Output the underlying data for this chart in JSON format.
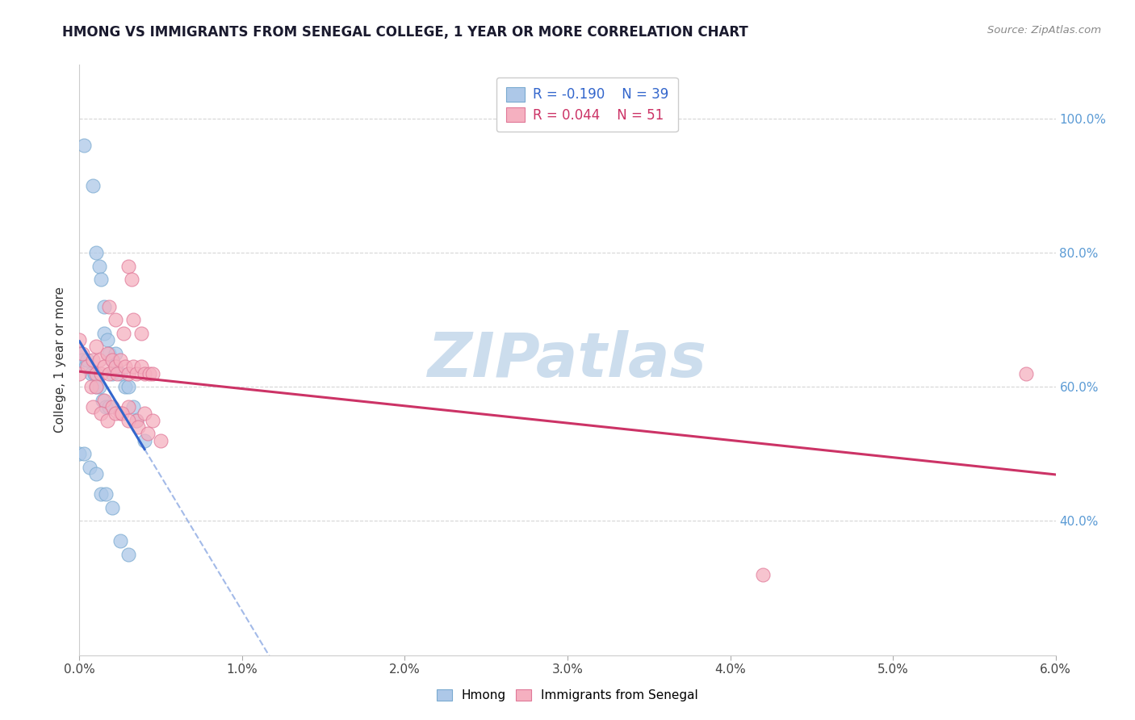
{
  "title": "HMONG VS IMMIGRANTS FROM SENEGAL COLLEGE, 1 YEAR OR MORE CORRELATION CHART",
  "source_text": "Source: ZipAtlas.com",
  "ylabel": "College, 1 year or more",
  "xlim": [
    0.0,
    0.06
  ],
  "ylim": [
    0.2,
    1.08
  ],
  "x_tick_labels": [
    "0.0%",
    "1.0%",
    "2.0%",
    "3.0%",
    "4.0%",
    "5.0%",
    "6.0%"
  ],
  "y_tick_labels": [
    "40.0%",
    "60.0%",
    "80.0%",
    "100.0%"
  ],
  "x_ticks": [
    0.0,
    0.01,
    0.02,
    0.03,
    0.04,
    0.05,
    0.06
  ],
  "y_ticks": [
    0.4,
    0.6,
    0.8,
    1.0
  ],
  "hmong_color": "#adc8e8",
  "senegal_color": "#f5b0c0",
  "hmong_edge": "#7aaad0",
  "senegal_edge": "#e07898",
  "trendline1_color": "#3366cc",
  "trendline2_color": "#cc3366",
  "watermark": "ZIPatlas",
  "watermark_color": "#ccdded",
  "background_color": "#ffffff",
  "hmong_x": [
    0.0003,
    0.0008,
    0.001,
    0.0012,
    0.0013,
    0.0015,
    0.0015,
    0.0017,
    0.0018,
    0.002,
    0.002,
    0.0022,
    0.0022,
    0.0025,
    0.0028,
    0.003,
    0.0033,
    0.0035,
    0.004,
    0.0,
    0.0002,
    0.0004,
    0.0005,
    0.0007,
    0.0009,
    0.001,
    0.0012,
    0.0014,
    0.0016,
    0.0018,
    0.0,
    0.0003,
    0.0006,
    0.001,
    0.0013,
    0.0016,
    0.002,
    0.0025,
    0.003
  ],
  "hmong_y": [
    0.96,
    0.9,
    0.8,
    0.78,
    0.76,
    0.72,
    0.68,
    0.67,
    0.65,
    0.64,
    0.62,
    0.65,
    0.63,
    0.62,
    0.6,
    0.6,
    0.57,
    0.55,
    0.52,
    0.65,
    0.64,
    0.63,
    0.64,
    0.62,
    0.62,
    0.6,
    0.6,
    0.58,
    0.57,
    0.57,
    0.5,
    0.5,
    0.48,
    0.47,
    0.44,
    0.44,
    0.42,
    0.37,
    0.35
  ],
  "senegal_x": [
    0.0,
    0.0,
    0.0002,
    0.0005,
    0.0007,
    0.0008,
    0.001,
    0.001,
    0.0012,
    0.0013,
    0.0015,
    0.0017,
    0.0018,
    0.002,
    0.0022,
    0.0023,
    0.0025,
    0.0028,
    0.003,
    0.0033,
    0.0035,
    0.0038,
    0.004,
    0.0043,
    0.0045,
    0.001,
    0.0015,
    0.002,
    0.0025,
    0.003,
    0.0035,
    0.004,
    0.0045,
    0.003,
    0.0032,
    0.0018,
    0.0022,
    0.0027,
    0.0033,
    0.0038,
    0.0008,
    0.0013,
    0.0017,
    0.0022,
    0.0026,
    0.003,
    0.0036,
    0.0042,
    0.005,
    0.0582,
    0.042
  ],
  "senegal_y": [
    0.67,
    0.62,
    0.65,
    0.63,
    0.6,
    0.64,
    0.66,
    0.62,
    0.64,
    0.62,
    0.63,
    0.65,
    0.62,
    0.64,
    0.63,
    0.62,
    0.64,
    0.63,
    0.62,
    0.63,
    0.62,
    0.63,
    0.62,
    0.62,
    0.62,
    0.6,
    0.58,
    0.57,
    0.56,
    0.57,
    0.55,
    0.56,
    0.55,
    0.78,
    0.76,
    0.72,
    0.7,
    0.68,
    0.7,
    0.68,
    0.57,
    0.56,
    0.55,
    0.56,
    0.56,
    0.55,
    0.54,
    0.53,
    0.52,
    0.62,
    0.32
  ]
}
